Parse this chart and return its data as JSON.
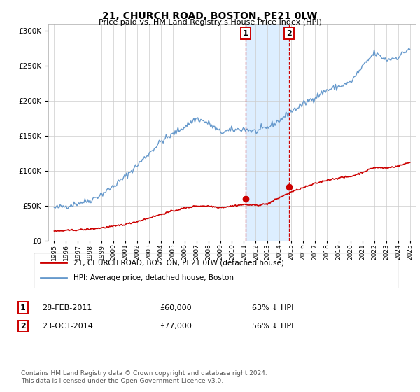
{
  "title": "21, CHURCH ROAD, BOSTON, PE21 0LW",
  "subtitle": "Price paid vs. HM Land Registry's House Price Index (HPI)",
  "legend_line1": "21, CHURCH ROAD, BOSTON, PE21 0LW (detached house)",
  "legend_line2": "HPI: Average price, detached house, Boston",
  "footer": "Contains HM Land Registry data © Crown copyright and database right 2024.\nThis data is licensed under the Open Government Licence v3.0.",
  "sale1_date": "28-FEB-2011",
  "sale1_price": 60000,
  "sale1_label": "63% ↓ HPI",
  "sale2_date": "23-OCT-2014",
  "sale2_price": 77000,
  "sale2_label": "56% ↓ HPI",
  "sale1_x": 2011.15,
  "sale2_x": 2014.81,
  "red_color": "#cc0000",
  "blue_color": "#6699cc",
  "shade_color": "#ddeeff",
  "marker_box_color": "#cc0000",
  "ylim": [
    0,
    310000
  ],
  "xlim_start": 1994.5,
  "xlim_end": 2025.5,
  "yticks": [
    0,
    50000,
    100000,
    150000,
    200000,
    250000,
    300000
  ],
  "hpi_years": [
    1995,
    1996,
    1997,
    1998,
    1999,
    2000,
    2001,
    2002,
    2003,
    2004,
    2005,
    2006,
    2007,
    2008,
    2009,
    2010,
    2011,
    2012,
    2013,
    2014,
    2015,
    2016,
    2017,
    2018,
    2019,
    2020,
    2021,
    2022,
    2023,
    2024,
    2025
  ],
  "hpi_vals": [
    47000,
    50000,
    54000,
    58000,
    67000,
    78000,
    92000,
    108000,
    125000,
    142000,
    152000,
    163000,
    175000,
    168000,
    155000,
    158000,
    160000,
    156000,
    162000,
    172000,
    185000,
    195000,
    205000,
    215000,
    220000,
    226000,
    248000,
    268000,
    258000,
    262000,
    275000
  ],
  "red_years": [
    1995,
    1996,
    1997,
    1998,
    1999,
    2000,
    2001,
    2002,
    2003,
    2004,
    2005,
    2006,
    2007,
    2008,
    2009,
    2010,
    2011,
    2012,
    2013,
    2014,
    2015,
    2016,
    2017,
    2018,
    2019,
    2020,
    2021,
    2022,
    2023,
    2024,
    2025
  ],
  "red_vals": [
    14000,
    15000,
    16000,
    17000,
    19000,
    21000,
    24000,
    28000,
    33000,
    38000,
    43000,
    47000,
    50000,
    50000,
    48000,
    50000,
    52000,
    51000,
    53000,
    62000,
    70000,
    76000,
    82000,
    87000,
    90000,
    92000,
    98000,
    105000,
    104000,
    107000,
    112000
  ]
}
